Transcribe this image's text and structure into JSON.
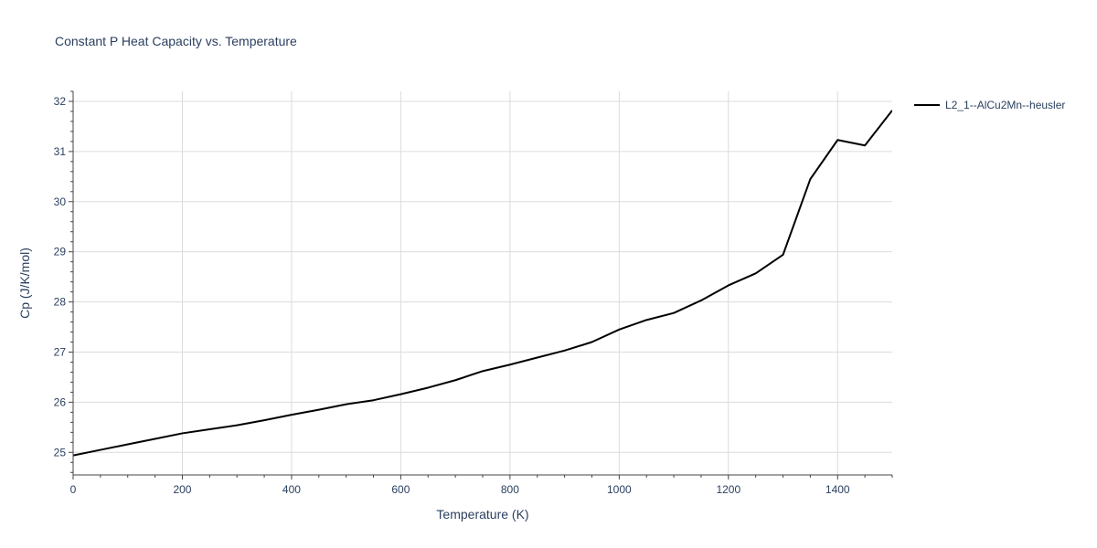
{
  "chart_data": {
    "type": "line",
    "title": "Constant P Heat Capacity vs. Temperature",
    "xlabel": "Temperature (K)",
    "ylabel": "Cp (J/K/mol)",
    "xlim": [
      0,
      1500
    ],
    "ylim": [
      24.55,
      32.2
    ],
    "xticks": [
      0,
      200,
      400,
      600,
      800,
      1000,
      1200,
      1400
    ],
    "yticks": [
      25,
      26,
      27,
      28,
      29,
      30,
      31,
      32
    ],
    "x_minor_step": 50,
    "y_minor_step": 0.2,
    "grid": true,
    "legend_position": "top-right-outside",
    "series": [
      {
        "name": "L2_1--AlCu2Mn--heusler",
        "color": "#000000",
        "x": [
          0,
          50,
          100,
          150,
          200,
          250,
          300,
          350,
          400,
          450,
          500,
          550,
          600,
          650,
          700,
          750,
          800,
          850,
          900,
          950,
          1000,
          1050,
          1100,
          1150,
          1200,
          1250,
          1300,
          1350,
          1400,
          1450,
          1500
        ],
        "y": [
          24.94,
          25.05,
          25.16,
          25.27,
          25.38,
          25.46,
          25.54,
          25.64,
          25.75,
          25.85,
          25.96,
          26.04,
          26.16,
          26.29,
          26.44,
          26.62,
          26.75,
          26.89,
          27.03,
          27.2,
          27.45,
          27.64,
          27.78,
          28.03,
          28.33,
          28.57,
          28.94,
          30.45,
          31.23,
          31.12,
          31.82
        ]
      }
    ]
  }
}
